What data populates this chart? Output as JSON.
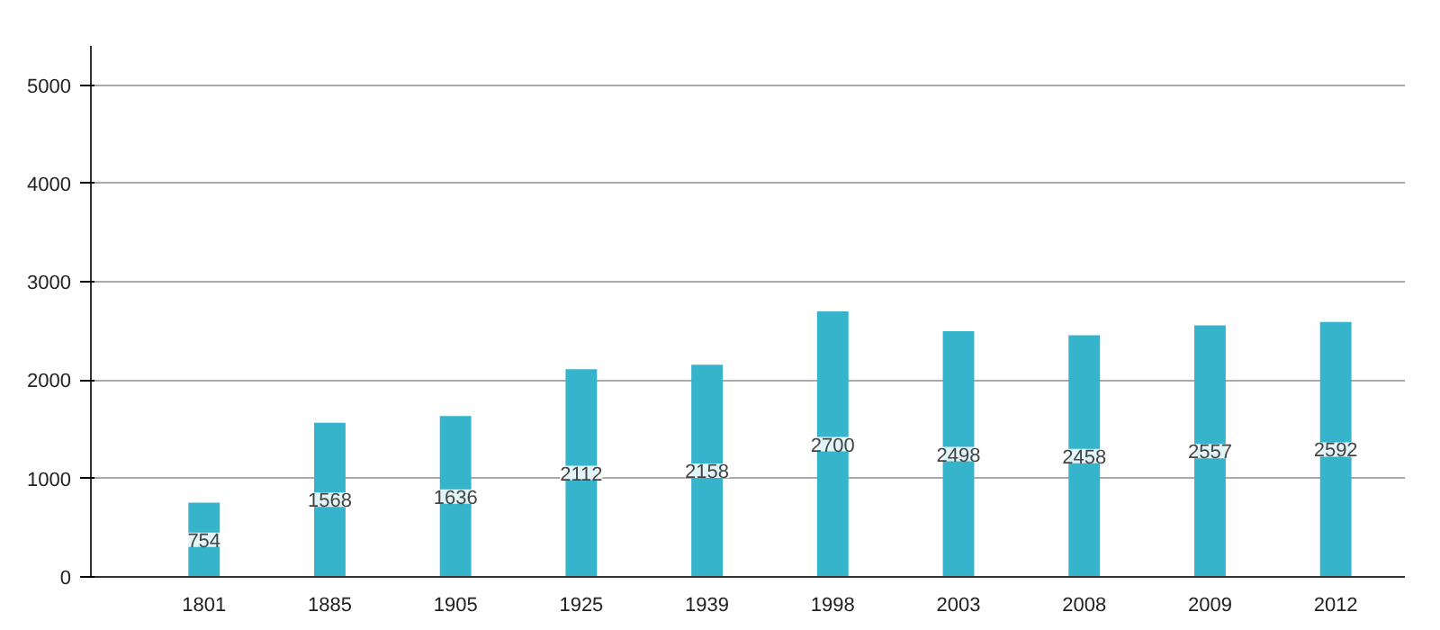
{
  "chart_data": {
    "type": "bar",
    "categories": [
      "1801",
      "1885",
      "1905",
      "1925",
      "1939",
      "1998",
      "2003",
      "2008",
      "2009",
      "2012"
    ],
    "values": [
      754,
      1568,
      1636,
      2112,
      2158,
      2700,
      2498,
      2458,
      2557,
      2592
    ],
    "color": "#36b4cc",
    "ylim": [
      0,
      5400
    ],
    "yticks": [
      0,
      1000,
      2000,
      3000,
      4000,
      5000
    ],
    "grid": "y",
    "data_labels": true
  }
}
